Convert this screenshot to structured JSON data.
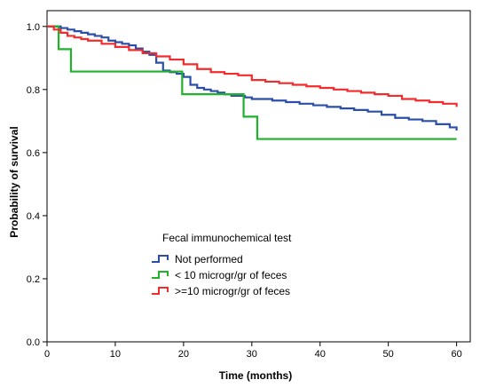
{
  "chart_data": {
    "type": "line",
    "xlabel": "Time (months)",
    "ylabel": "Probability of survival",
    "xlim": [
      0,
      62
    ],
    "ylim": [
      0,
      1.05
    ],
    "xticks": [
      0,
      10,
      20,
      30,
      40,
      50,
      60
    ],
    "xtick_labels": [
      "0",
      "10",
      "20",
      "30",
      "40",
      "50",
      "60"
    ],
    "yticks": [
      0.0,
      0.2,
      0.4,
      0.6,
      0.8,
      1.0
    ],
    "ytick_labels": [
      "0.0",
      "0.2",
      "0.4",
      "0.6",
      "0.8",
      "1.0"
    ],
    "grid": false,
    "step": true,
    "legend": {
      "title": "Fecal immunochemical test",
      "placement": "lower-left-center"
    },
    "series": [
      {
        "name": "Not performed",
        "color": "#2b4fa8",
        "x": [
          0,
          1,
          2,
          3,
          4,
          5,
          6,
          7,
          8,
          9,
          10,
          11,
          12,
          13,
          14,
          15,
          16,
          17,
          18,
          19,
          20,
          21,
          22,
          23,
          24,
          25,
          26,
          27,
          28,
          29,
          30,
          31,
          33,
          35,
          37,
          39,
          41,
          43,
          45,
          47,
          49,
          51,
          53,
          55,
          57,
          59,
          60
        ],
        "y": [
          1.0,
          1.0,
          0.995,
          0.99,
          0.985,
          0.98,
          0.975,
          0.97,
          0.965,
          0.955,
          0.95,
          0.945,
          0.94,
          0.93,
          0.92,
          0.91,
          0.885,
          0.86,
          0.855,
          0.85,
          0.84,
          0.815,
          0.805,
          0.8,
          0.795,
          0.79,
          0.785,
          0.78,
          0.78,
          0.775,
          0.77,
          0.77,
          0.765,
          0.76,
          0.755,
          0.75,
          0.745,
          0.74,
          0.735,
          0.73,
          0.72,
          0.71,
          0.705,
          0.7,
          0.69,
          0.68,
          0.67
        ]
      },
      {
        "name": "< 10 microgr/gr of feces",
        "color": "#1fb22a",
        "x": [
          0,
          1.7,
          3.5,
          19.8,
          28.8,
          30.8,
          60
        ],
        "y": [
          1.0,
          0.928,
          0.857,
          0.785,
          0.714,
          0.643,
          0.643
        ]
      },
      {
        "name": ">=10 microgr/gr of feces",
        "color": "#f22c2c",
        "x": [
          0,
          1,
          2,
          3,
          4,
          5,
          6,
          8,
          10,
          12,
          14,
          16,
          18,
          20,
          22,
          24,
          26,
          28,
          30,
          32,
          34,
          36,
          38,
          40,
          42,
          44,
          46,
          48,
          50,
          52,
          54,
          56,
          58,
          60
        ],
        "y": [
          1.0,
          0.99,
          0.98,
          0.97,
          0.965,
          0.96,
          0.955,
          0.945,
          0.935,
          0.925,
          0.915,
          0.905,
          0.895,
          0.88,
          0.865,
          0.855,
          0.85,
          0.845,
          0.83,
          0.825,
          0.82,
          0.815,
          0.81,
          0.805,
          0.8,
          0.795,
          0.79,
          0.785,
          0.78,
          0.77,
          0.765,
          0.76,
          0.755,
          0.745
        ]
      }
    ]
  }
}
